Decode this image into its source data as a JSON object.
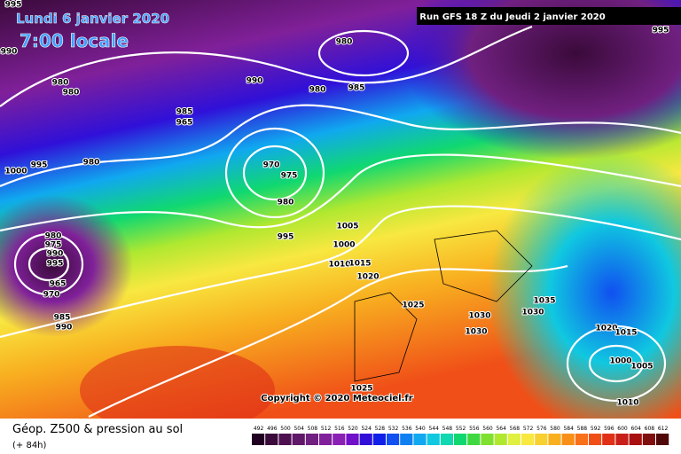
{
  "header": {
    "date": "Lundi 6 janvier 2020",
    "time": "7:00 locale",
    "run": "Run GFS 18 Z du Jeudi 2 janvier 2020"
  },
  "map": {
    "isobar_labels": [
      995,
      990,
      980,
      980,
      985,
      965,
      990,
      980,
      985,
      980,
      980,
      995,
      1000,
      970,
      975,
      980,
      995,
      1005,
      1000,
      1010,
      1015,
      1020,
      980,
      975,
      990,
      995,
      965,
      970,
      985,
      990,
      1025,
      1030,
      1030,
      1030,
      1035,
      1020,
      1015,
      1000,
      1005,
      1010,
      1025,
      995
    ],
    "copyright": "Copyright © 2020 Meteociel.fr"
  },
  "footer": {
    "title": "Géop. Z500 & pression au sol",
    "lead": "(+ 84h)",
    "scale": {
      "values": [
        492,
        496,
        500,
        504,
        508,
        512,
        516,
        520,
        524,
        528,
        532,
        536,
        540,
        544,
        548,
        552,
        556,
        560,
        564,
        568,
        572,
        576,
        580,
        584,
        588,
        592,
        596,
        600,
        604,
        608,
        612
      ],
      "colors": [
        "#200020",
        "#3a0a3a",
        "#4e1050",
        "#601868",
        "#702080",
        "#80209a",
        "#8a20b4",
        "#7010c8",
        "#3010d8",
        "#1020e8",
        "#1050f0",
        "#1080f0",
        "#10a8f0",
        "#10c8e0",
        "#10d8b0",
        "#10d870",
        "#40d840",
        "#80e030",
        "#b0e830",
        "#e0f040",
        "#f8e840",
        "#f8d030",
        "#f8b020",
        "#f89018",
        "#f87018",
        "#f05018",
        "#e03018",
        "#c82018",
        "#a81010",
        "#801010",
        "#500808"
      ]
    }
  }
}
